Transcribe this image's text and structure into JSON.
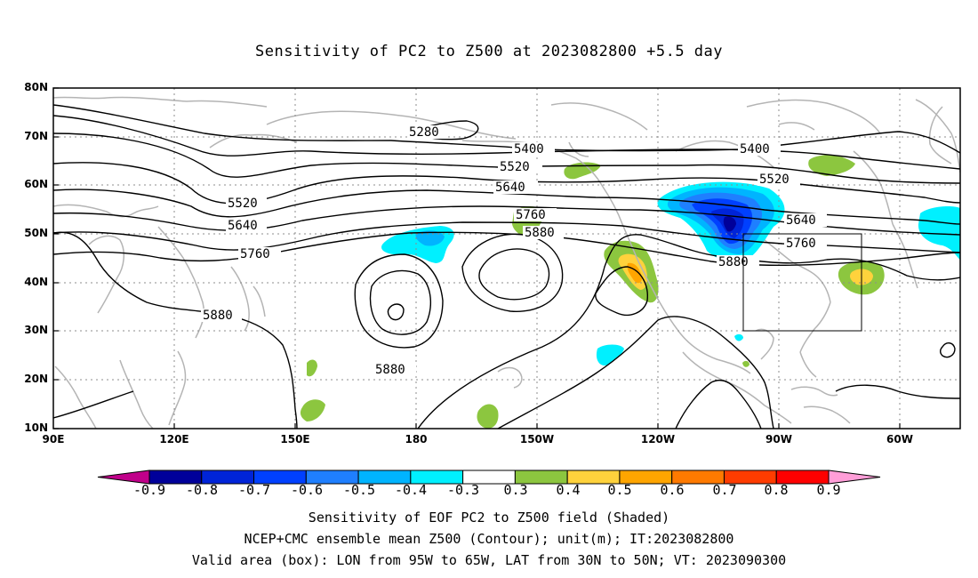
{
  "title": "Sensitivity of PC2 to Z500 at 2023082800 +5.5 day",
  "lat_labels": [
    "80N",
    "70N",
    "60N",
    "50N",
    "40N",
    "30N",
    "20N",
    "10N"
  ],
  "lon_labels": [
    "90E",
    "120E",
    "150E",
    "180",
    "150W",
    "120W",
    "90W",
    "60W"
  ],
  "contour_labels": {
    "c5280": "5280",
    "c5400a": "5400",
    "c5400b": "5400",
    "c5520a": "5520",
    "c5520b": "5520",
    "c5520c": "5520",
    "c5640a": "5640",
    "c5640b": "5640",
    "c5640c": "5640",
    "c5760a": "5760",
    "c5760b": "5760",
    "c5760c": "5760",
    "c5880a": "5880",
    "c5880b": "5880",
    "c5880c": "5880",
    "c5880d": "5880"
  },
  "colorbar": {
    "labels": [
      "-0.9",
      "-0.8",
      "-0.7",
      "-0.6",
      "-0.5",
      "-0.4",
      "-0.3",
      "0.3",
      "0.4",
      "0.5",
      "0.6",
      "0.7",
      "0.8",
      "0.9"
    ],
    "colors": [
      "#00009a",
      "#0024d8",
      "#0040ff",
      "#1f7fff",
      "#00b4ff",
      "#00f0ff",
      "#ffffff",
      "#8cc63f",
      "#ffd23c",
      "#ffa500",
      "#ff7a00",
      "#ff3c00",
      "#ff0000"
    ],
    "low_end_color": "#c0008a",
    "high_end_color": "#ff9ed8"
  },
  "captions": {
    "line1": "Sensitivity of EOF PC2 to Z500 field (Shaded)",
    "line2": "NCEP+CMC ensemble mean Z500 (Contour); unit(m); IT:2023082800",
    "line3": "Valid area (box): LON from 95W to 65W, LAT from 30N to 50N; VT: 2023090300"
  },
  "valid_box": {
    "lon_w": -95,
    "lon_e": -65,
    "lat_s": 30,
    "lat_n": 50
  },
  "colors": {
    "coast": "#b4b4b4",
    "grid": "#8c8c8c",
    "contour": "#000000"
  }
}
